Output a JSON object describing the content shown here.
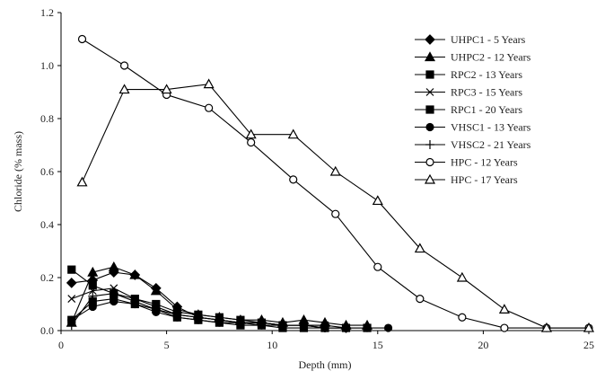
{
  "chart_data": {
    "type": "line",
    "title": "",
    "xlabel": "Depth (mm)",
    "ylabel": "Chloride (% mass)",
    "xlim": [
      0,
      25
    ],
    "ylim": [
      0,
      1.2
    ],
    "xticks": [
      0,
      5,
      10,
      15,
      20,
      25
    ],
    "xtick_labels": [
      "0",
      "5",
      "10",
      "15",
      "20",
      "25"
    ],
    "yticks": [
      0,
      0.2,
      0.4,
      0.6,
      0.8,
      1.0,
      1.2
    ],
    "ytick_labels": [
      "0.0",
      "0.2",
      "0.4",
      "0.6",
      "0.8",
      "1.0",
      "1.2"
    ],
    "grid": false,
    "legend_position": "top-right",
    "series": [
      {
        "name": "UHPC1 - 5 Years",
        "marker": "diamond",
        "fill": "filled",
        "x": [
          0.5,
          1.5,
          2.5,
          3.5,
          4.5,
          5.5,
          6.5,
          7.5,
          8.5,
          9.5,
          10.5,
          11.5,
          12.5,
          13.5
        ],
        "y": [
          0.18,
          0.19,
          0.22,
          0.21,
          0.16,
          0.09,
          0.05,
          0.04,
          0.03,
          0.03,
          0.02,
          0.02,
          0.02,
          0.01
        ]
      },
      {
        "name": "UHPC2 - 12 Years",
        "marker": "triangle",
        "fill": "filled",
        "x": [
          0.5,
          1.5,
          2.5,
          3.5,
          4.5,
          5.5,
          6.5,
          7.5,
          8.5,
          9.5,
          10.5,
          11.5,
          12.5,
          13.5,
          14.5
        ],
        "y": [
          0.03,
          0.22,
          0.24,
          0.21,
          0.15,
          0.08,
          0.06,
          0.05,
          0.04,
          0.04,
          0.03,
          0.04,
          0.03,
          0.02,
          0.02
        ]
      },
      {
        "name": "RPC2 - 13 Years",
        "marker": "square",
        "fill": "filled",
        "x": [
          0.5,
          1.5,
          2.5,
          3.5,
          4.5,
          5.5,
          6.5,
          7.5,
          8.5,
          9.5,
          10.5
        ],
        "y": [
          0.23,
          0.17,
          0.14,
          0.12,
          0.1,
          0.07,
          0.06,
          0.05,
          0.04,
          0.03,
          0.02
        ]
      },
      {
        "name": "RPC3 - 15 Years",
        "marker": "x",
        "fill": "none",
        "x": [
          0.5,
          1.5,
          2.5,
          3.5,
          4.5,
          5.5,
          6.5,
          7.5,
          8.5,
          9.5,
          10.5,
          11.5,
          12.5
        ],
        "y": [
          0.12,
          0.15,
          0.16,
          0.12,
          0.09,
          0.06,
          0.05,
          0.04,
          0.03,
          0.03,
          0.02,
          0.02,
          0.02
        ]
      },
      {
        "name": "RPC1 - 20 Years",
        "marker": "square",
        "fill": "filled",
        "x": [
          0.5,
          1.5,
          2.5,
          3.5,
          4.5,
          5.5,
          6.5,
          7.5,
          8.5,
          9.5,
          10.5,
          11.5,
          12.5,
          13.5,
          14.5
        ],
        "y": [
          0.04,
          0.11,
          0.12,
          0.1,
          0.08,
          0.05,
          0.04,
          0.03,
          0.02,
          0.02,
          0.01,
          0.01,
          0.01,
          0.01,
          0.01
        ]
      },
      {
        "name": "VHSC1 - 13 Years",
        "marker": "circle",
        "fill": "filled",
        "x": [
          0.5,
          1.5,
          2.5,
          3.5,
          4.5,
          5.5,
          6.5,
          7.5,
          8.5,
          9.5,
          10.5,
          11.5,
          12.5,
          13.5,
          14.5,
          15.5
        ],
        "y": [
          0.04,
          0.09,
          0.11,
          0.1,
          0.07,
          0.05,
          0.04,
          0.03,
          0.03,
          0.02,
          0.02,
          0.02,
          0.01,
          0.01,
          0.01,
          0.01
        ]
      },
      {
        "name": "VHSC2 - 21 Years",
        "marker": "plus",
        "fill": "none",
        "x": [
          0.5,
          1.5,
          2.5,
          3.5,
          4.5,
          5.5,
          6.5,
          7.5,
          8.5,
          9.5,
          10.5,
          11.5,
          12.5,
          13.5
        ],
        "y": [
          0.02,
          0.13,
          0.14,
          0.11,
          0.08,
          0.06,
          0.05,
          0.04,
          0.03,
          0.03,
          0.02,
          0.02,
          0.01,
          0.01
        ]
      },
      {
        "name": "HPC - 12 Years",
        "marker": "circle",
        "fill": "open",
        "x": [
          1,
          3,
          5,
          7,
          9,
          11,
          13,
          15,
          17,
          19,
          21,
          23,
          25
        ],
        "y": [
          1.1,
          1.0,
          0.89,
          0.84,
          0.71,
          0.57,
          0.44,
          0.24,
          0.12,
          0.05,
          0.01,
          0.01,
          0.01
        ]
      },
      {
        "name": "HPC - 17 Years",
        "marker": "triangle",
        "fill": "open",
        "x": [
          1,
          3,
          5,
          7,
          9,
          11,
          13,
          15,
          17,
          19,
          21,
          23,
          25
        ],
        "y": [
          0.56,
          0.91,
          0.91,
          0.93,
          0.74,
          0.74,
          0.6,
          0.49,
          0.31,
          0.2,
          0.08,
          0.01,
          0.01
        ]
      }
    ]
  }
}
